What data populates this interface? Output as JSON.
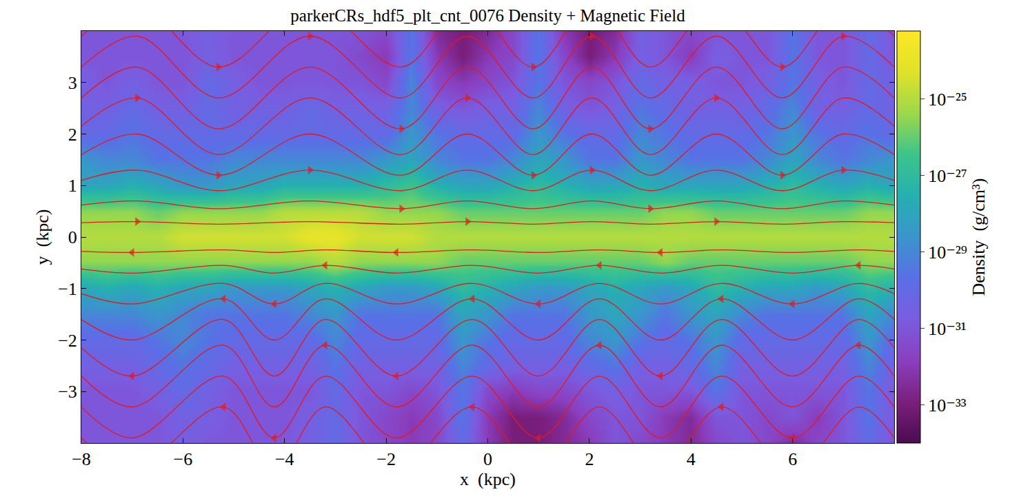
{
  "chart_data": {
    "type": "heatmap",
    "title": "parkerCRs_hdf5_plt_cnt_0076 Density + Magnetic Field",
    "x_label": "x  (kpc)",
    "y_label": "y  (kpc)",
    "xlim": [
      -8,
      8
    ],
    "ylim": [
      -4,
      4
    ],
    "xticks": [
      -8,
      -6,
      -4,
      -2,
      0,
      2,
      4,
      6
    ],
    "yticks": [
      -3,
      -2,
      -1,
      0,
      1,
      2,
      3
    ],
    "grid": false,
    "x": [
      -8,
      -7.5,
      -7,
      -6.5,
      -6,
      -5.5,
      -5,
      -4.5,
      -4,
      -3.5,
      -3,
      -2.5,
      -2,
      -1.5,
      -1,
      -0.5,
      0,
      0.5,
      1,
      1.5,
      2,
      2.5,
      3,
      3.5,
      4,
      4.5,
      5,
      5.5,
      6,
      6.5,
      7,
      7.5,
      8
    ],
    "y": [
      -4,
      -3.5,
      -3,
      -2.5,
      -2,
      -1.5,
      -1,
      -0.5,
      0,
      0.5,
      1,
      1.5,
      2,
      2.5,
      3,
      3.5,
      4
    ],
    "z": [
      [
        1e-31,
        1e-31,
        1e-31,
        1e-31,
        3e-31,
        1e-31,
        1e-31,
        1e-31,
        1e-31,
        3e-31,
        1e-30,
        1e-31,
        3e-32,
        1e-32,
        3e-32,
        1e-30,
        1e-32,
        1e-33,
        1e-33,
        3e-33,
        1e-32,
        1e-31,
        3e-32,
        1e-32,
        3e-33,
        3e-32,
        1e-31,
        3e-32,
        3e-33,
        3e-32,
        1e-31,
        1e-30,
        1e-31
      ],
      [
        1e-31,
        1e-31,
        1e-31,
        1e-31,
        3e-31,
        3e-31,
        1e-31,
        1e-31,
        1e-31,
        3e-31,
        1e-30,
        1e-31,
        3e-32,
        1e-32,
        3e-32,
        3e-30,
        1e-32,
        1e-33,
        1e-33,
        3e-33,
        3e-32,
        1e-31,
        1e-31,
        1e-32,
        3e-33,
        1e-31,
        1e-31,
        3e-32,
        1e-31,
        1e-32,
        1e-31,
        3e-30,
        1e-31
      ],
      [
        1e-31,
        1e-31,
        1e-31,
        3e-31,
        1e-30,
        3e-31,
        1e-31,
        1e-31,
        1e-31,
        1e-31,
        1e-30,
        1e-31,
        1e-31,
        3e-32,
        1e-31,
        3e-30,
        3e-32,
        1e-32,
        3e-32,
        3e-32,
        1e-31,
        3e-31,
        1e-31,
        1e-31,
        1e-31,
        3e-30,
        1e-31,
        1e-31,
        1e-31,
        1e-31,
        1e-31,
        3e-30,
        1e-31
      ],
      [
        3e-31,
        3e-31,
        3e-31,
        1e-30,
        3e-30,
        1e-30,
        3e-31,
        3e-31,
        3e-31,
        3e-31,
        3e-30,
        3e-31,
        3e-31,
        3e-31,
        3e-31,
        1e-29,
        1e-30,
        3e-31,
        3e-31,
        3e-31,
        1e-30,
        3e-30,
        3e-31,
        3e-31,
        1e-30,
        1e-29,
        3e-31,
        3e-31,
        3e-31,
        3e-31,
        3e-31,
        1e-29,
        3e-31
      ],
      [
        1e-30,
        1e-30,
        1e-30,
        3e-30,
        1e-29,
        3e-30,
        1e-30,
        1e-30,
        1e-30,
        1e-30,
        1e-29,
        1e-30,
        1e-30,
        1e-30,
        1e-30,
        3e-29,
        3e-30,
        1e-30,
        1e-30,
        1e-30,
        1e-29,
        3e-29,
        3e-30,
        1e-30,
        3e-30,
        3e-29,
        1e-30,
        1e-30,
        1e-30,
        1e-30,
        1e-30,
        3e-29,
        1e-30
      ],
      [
        1e-29,
        1e-29,
        1e-29,
        3e-29,
        1e-29,
        3e-30,
        3e-30,
        3e-30,
        3e-30,
        1e-29,
        3e-29,
        3e-30,
        3e-30,
        3e-30,
        3e-30,
        1e-28,
        3e-29,
        3e-30,
        3e-30,
        3e-30,
        3e-29,
        1e-28,
        3e-29,
        3e-30,
        3e-29,
        1e-28,
        1e-29,
        3e-30,
        3e-30,
        3e-30,
        3e-30,
        1e-28,
        1e-29
      ],
      [
        1e-28,
        3e-28,
        1e-28,
        3e-28,
        1e-28,
        1e-28,
        3e-29,
        3e-29,
        3e-29,
        1e-28,
        3e-28,
        1e-28,
        3e-29,
        3e-29,
        1e-28,
        1e-27,
        3e-28,
        1e-28,
        3e-29,
        3e-29,
        1e-28,
        3e-28,
        1e-28,
        3e-29,
        1e-28,
        1e-27,
        3e-28,
        1e-28,
        1e-28,
        3e-29,
        1e-28,
        1e-27,
        3e-28
      ],
      [
        3e-26,
        3e-26,
        3e-26,
        3e-26,
        3e-26,
        3e-26,
        3e-26,
        3e-26,
        3e-26,
        3e-26,
        1e-25,
        3e-26,
        3e-26,
        3e-26,
        3e-26,
        1e-26,
        1e-26,
        1e-26,
        1e-26,
        1e-26,
        1e-26,
        1e-26,
        1e-26,
        3e-26,
        1e-26,
        1e-26,
        1e-26,
        1e-26,
        1e-26,
        1e-26,
        1e-26,
        3e-26,
        3e-26
      ],
      [
        1e-25,
        1e-25,
        1e-25,
        1e-25,
        3e-25,
        3e-25,
        3e-25,
        3e-25,
        3e-25,
        1e-24,
        1e-24,
        3e-25,
        3e-25,
        3e-25,
        1e-25,
        1e-25,
        1e-25,
        1e-25,
        1e-25,
        1e-25,
        1e-25,
        1e-25,
        1e-25,
        1e-25,
        1e-25,
        1e-25,
        1e-25,
        1e-25,
        1e-25,
        1e-25,
        1e-25,
        1e-25,
        1e-25
      ],
      [
        3e-26,
        3e-26,
        3e-26,
        1e-26,
        3e-26,
        3e-26,
        3e-26,
        3e-26,
        1e-25,
        1e-25,
        1e-25,
        1e-25,
        3e-26,
        3e-26,
        3e-26,
        1e-26,
        1e-26,
        1e-26,
        1e-26,
        1e-26,
        1e-26,
        1e-26,
        1e-26,
        3e-26,
        3e-26,
        1e-26,
        1e-26,
        1e-26,
        1e-26,
        1e-26,
        1e-26,
        3e-26,
        3e-26
      ],
      [
        1e-28,
        1e-28,
        3e-28,
        1e-28,
        3e-29,
        3e-29,
        1e-28,
        1e-28,
        3e-28,
        3e-28,
        3e-28,
        3e-28,
        1e-27,
        3e-27,
        3e-28,
        1e-28,
        1e-28,
        3e-28,
        1e-27,
        3e-28,
        1e-28,
        1e-28,
        3e-28,
        1e-28,
        1e-28,
        1e-28,
        1e-28,
        3e-28,
        1e-27,
        3e-28,
        1e-28,
        3e-28,
        1e-28
      ],
      [
        3e-29,
        1e-29,
        1e-29,
        3e-30,
        3e-30,
        3e-30,
        1e-29,
        1e-29,
        1e-29,
        1e-29,
        1e-29,
        1e-29,
        3e-29,
        1e-28,
        1e-29,
        3e-30,
        3e-30,
        1e-29,
        1e-28,
        3e-29,
        3e-30,
        3e-30,
        3e-29,
        1e-29,
        3e-30,
        3e-30,
        3e-30,
        1e-29,
        1e-28,
        1e-29,
        3e-30,
        1e-29,
        3e-29
      ],
      [
        1e-30,
        1e-30,
        3e-30,
        1e-30,
        1e-30,
        1e-30,
        1e-30,
        1e-30,
        1e-30,
        1e-30,
        1e-30,
        1e-30,
        1e-30,
        3e-29,
        3e-30,
        1e-30,
        1e-30,
        1e-30,
        3e-29,
        3e-30,
        1e-30,
        1e-30,
        1e-29,
        3e-30,
        1e-30,
        1e-30,
        1e-30,
        3e-30,
        3e-29,
        3e-30,
        1e-30,
        3e-30,
        1e-30
      ],
      [
        3e-31,
        3e-31,
        1e-30,
        3e-31,
        3e-31,
        1e-30,
        3e-31,
        3e-31,
        3e-31,
        1e-30,
        3e-31,
        3e-31,
        3e-31,
        1e-29,
        3e-31,
        1e-31,
        3e-31,
        3e-31,
        1e-29,
        3e-31,
        1e-31,
        3e-31,
        3e-30,
        1e-30,
        3e-31,
        3e-31,
        3e-31,
        1e-30,
        1e-29,
        3e-31,
        3e-31,
        1e-30,
        3e-31
      ],
      [
        3e-31,
        1e-31,
        3e-31,
        1e-31,
        1e-31,
        1e-30,
        3e-31,
        1e-31,
        1e-31,
        1e-31,
        1e-31,
        1e-31,
        3e-32,
        1e-29,
        3e-32,
        1e-32,
        3e-32,
        1e-31,
        3e-30,
        1e-31,
        3e-32,
        1e-31,
        1e-30,
        3e-31,
        3e-31,
        1e-31,
        1e-31,
        3e-31,
        3e-30,
        3e-31,
        1e-31,
        1e-30,
        3e-31
      ],
      [
        1e-31,
        1e-31,
        1e-31,
        1e-31,
        1e-31,
        3e-31,
        1e-31,
        1e-31,
        1e-31,
        1e-31,
        1e-31,
        3e-32,
        1e-32,
        3e-30,
        1e-32,
        1e-33,
        1e-32,
        3e-32,
        3e-30,
        3e-32,
        1e-33,
        1e-32,
        3e-31,
        1e-31,
        1e-32,
        3e-31,
        1e-31,
        1e-31,
        3e-30,
        1e-31,
        1e-31,
        1e-30,
        1e-31
      ],
      [
        1e-31,
        1e-31,
        1e-31,
        1e-31,
        1e-31,
        3e-31,
        1e-31,
        1e-31,
        1e-31,
        1e-31,
        1e-31,
        1e-31,
        3e-32,
        3e-30,
        3e-33,
        1e-33,
        3e-33,
        3e-32,
        3e-30,
        1e-32,
        1e-33,
        3e-33,
        3e-31,
        1e-31,
        3e-32,
        1e-31,
        1e-31,
        1e-31,
        3e-30,
        1e-31,
        1e-31,
        1e-30,
        1e-31
      ]
    ],
    "colorbar": {
      "title": "Density  (g/cm³)",
      "log": true,
      "range": [
        1e-34,
        6e-24
      ],
      "ticks": [
        {
          "value": 1e-25,
          "label": "10⁻²⁵"
        },
        {
          "value": 1e-27,
          "label": "10⁻²⁷"
        },
        {
          "value": 1e-29,
          "label": "10⁻²⁹"
        },
        {
          "value": 1e-31,
          "label": "10⁻³¹"
        },
        {
          "value": 1e-33,
          "label": "10⁻³³"
        }
      ]
    },
    "field_lines": [
      {
        "color": "#e3191c",
        "marker": "triangle-right",
        "x": [
          -8,
          -6.9,
          -5.3,
          -3.5,
          -1.7,
          -0.4,
          0.9,
          2.05,
          3.2,
          4.5,
          5.8,
          7.0,
          8
        ],
        "lines": [
          [
            0.28,
            0.3,
            0.25,
            0.3,
            0.25,
            0.3,
            0.25,
            0.3,
            0.25,
            0.3,
            0.25,
            0.3,
            0.28
          ],
          [
            0.62,
            0.7,
            0.55,
            0.7,
            0.55,
            0.7,
            0.55,
            0.7,
            0.55,
            0.7,
            0.55,
            0.7,
            0.62
          ],
          [
            1.1,
            1.3,
            0.9,
            1.3,
            0.9,
            1.3,
            0.9,
            1.3,
            0.9,
            1.3,
            0.9,
            1.3,
            1.1
          ],
          [
            1.6,
            2.0,
            1.2,
            2.0,
            1.2,
            2.0,
            1.2,
            2.0,
            1.2,
            2.0,
            1.2,
            2.0,
            1.6
          ],
          [
            2.15,
            2.7,
            1.6,
            2.7,
            1.6,
            2.7,
            1.6,
            2.7,
            1.6,
            2.7,
            1.6,
            2.7,
            2.15
          ],
          [
            2.7,
            3.3,
            2.1,
            3.3,
            2.1,
            3.3,
            2.1,
            3.3,
            2.1,
            3.3,
            2.1,
            3.3,
            2.7
          ],
          [
            3.3,
            3.9,
            2.7,
            3.9,
            2.7,
            3.9,
            2.7,
            3.9,
            2.7,
            3.9,
            2.7,
            3.9,
            3.3
          ],
          [
            3.9,
            4.5,
            3.3,
            4.5,
            3.3,
            4.5,
            3.3,
            4.5,
            3.3,
            4.5,
            3.3,
            4.5,
            3.9
          ]
        ]
      },
      {
        "color": "#e3191c",
        "marker": "triangle-left",
        "x": [
          -8,
          -7.0,
          -5.2,
          -4.2,
          -3.2,
          -1.8,
          -0.3,
          1.0,
          2.2,
          3.4,
          4.6,
          6.0,
          7.3,
          8
        ],
        "lines": [
          [
            -0.28,
            -0.3,
            -0.25,
            -0.3,
            -0.25,
            -0.3,
            -0.25,
            -0.3,
            -0.25,
            -0.3,
            -0.25,
            -0.3,
            -0.25,
            -0.28
          ],
          [
            -0.62,
            -0.7,
            -0.55,
            -0.7,
            -0.55,
            -0.7,
            -0.55,
            -0.7,
            -0.55,
            -0.7,
            -0.55,
            -0.7,
            -0.55,
            -0.62
          ],
          [
            -1.1,
            -1.3,
            -0.9,
            -1.3,
            -0.9,
            -1.3,
            -0.9,
            -1.3,
            -0.9,
            -1.3,
            -0.9,
            -1.3,
            -0.9,
            -1.1
          ],
          [
            -1.6,
            -2.0,
            -1.2,
            -2.0,
            -1.2,
            -2.0,
            -1.2,
            -2.0,
            -1.2,
            -2.0,
            -1.2,
            -2.0,
            -1.2,
            -1.6
          ],
          [
            -2.15,
            -2.7,
            -1.6,
            -2.7,
            -1.6,
            -2.7,
            -1.6,
            -2.7,
            -1.6,
            -2.7,
            -1.6,
            -2.7,
            -1.6,
            -2.15
          ],
          [
            -2.7,
            -3.3,
            -2.1,
            -3.3,
            -2.1,
            -3.3,
            -2.1,
            -3.3,
            -2.1,
            -3.3,
            -2.1,
            -3.3,
            -2.1,
            -2.7
          ],
          [
            -3.3,
            -3.9,
            -2.7,
            -3.9,
            -2.7,
            -3.9,
            -2.7,
            -3.9,
            -2.7,
            -3.9,
            -2.7,
            -3.9,
            -2.7,
            -3.3
          ],
          [
            -3.9,
            -4.5,
            -3.3,
            -4.5,
            -3.3,
            -4.5,
            -3.3,
            -4.5,
            -3.3,
            -4.5,
            -3.3,
            -4.5,
            -3.3,
            -3.9
          ]
        ]
      }
    ]
  }
}
